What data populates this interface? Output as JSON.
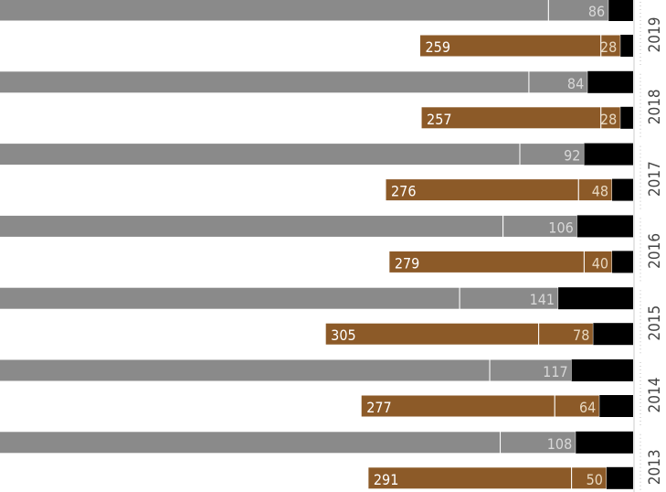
{
  "chart_data": {
    "type": "bar",
    "orientation": "horizontal",
    "stacked": true,
    "title": "",
    "xlabel": "",
    "ylabel": "",
    "categories": [
      "2019",
      "2018",
      "2017",
      "2016",
      "2015",
      "2014",
      "2013"
    ],
    "groups": [
      {
        "year": "2019",
        "upper": {
          "color": "#8a8a8a",
          "values": [
            839,
            86,
            35
          ]
        },
        "lower": {
          "color": "#8c5a28",
          "values": [
            259,
            28,
            18
          ]
        }
      },
      {
        "year": "2018",
        "upper": {
          "color": "#8a8a8a",
          "values": [
            885,
            84,
            65
          ]
        },
        "lower": {
          "color": "#8c5a28",
          "values": [
            257,
            28,
            18
          ]
        }
      },
      {
        "year": "2017",
        "upper": {
          "color": "#8a8a8a",
          "values": [
            817,
            92,
            70
          ]
        },
        "lower": {
          "color": "#8c5a28",
          "values": [
            276,
            48,
            30
          ]
        }
      },
      {
        "year": "2016",
        "upper": {
          "color": "#8a8a8a",
          "values": [
            792,
            106,
            80
          ]
        },
        "lower": {
          "color": "#8c5a28",
          "values": [
            279,
            40,
            30
          ]
        }
      },
      {
        "year": "2015",
        "upper": {
          "color": "#8a8a8a",
          "values": [
            798,
            141,
            107
          ]
        },
        "lower": {
          "color": "#8c5a28",
          "values": [
            305,
            78,
            57
          ]
        }
      },
      {
        "year": "2014",
        "upper": {
          "color": "#8a8a8a",
          "values": [
            773,
            117,
            88
          ]
        },
        "lower": {
          "color": "#8c5a28",
          "values": [
            277,
            64,
            48
          ]
        }
      },
      {
        "year": "2013",
        "upper": {
          "color": "#8a8a8a",
          "values": [
            815,
            108,
            82
          ]
        },
        "lower": {
          "color": "#8c5a28",
          "values": [
            291,
            50,
            38
          ]
        }
      }
    ],
    "segment_colors": {
      "remainder": "#000000"
    }
  }
}
